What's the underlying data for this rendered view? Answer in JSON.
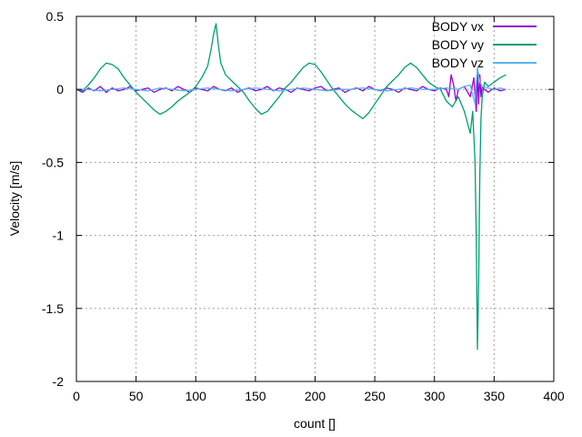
{
  "chart_data": {
    "type": "line",
    "title": "",
    "xlabel": "count []",
    "ylabel": "Velocity [m/s]",
    "xlim": [
      0,
      400
    ],
    "ylim": [
      -2,
      0.5
    ],
    "x_ticks": [
      0,
      50,
      100,
      150,
      200,
      250,
      300,
      350,
      400
    ],
    "y_ticks": [
      0.5,
      0,
      -0.5,
      -1,
      -1.5,
      -2
    ],
    "x_tick_labels": [
      "0",
      "50",
      "100",
      "150",
      "200",
      "250",
      "300",
      "350",
      "400"
    ],
    "y_tick_labels": [
      "0.5",
      "0",
      "-0.5",
      "-1",
      "-1.5",
      "-2"
    ],
    "grid": true,
    "legend_position": "top-right",
    "series": [
      {
        "name": "BODY vx",
        "color": "#9400d3",
        "x": [
          0,
          5,
          10,
          15,
          20,
          25,
          30,
          35,
          40,
          45,
          50,
          55,
          60,
          65,
          70,
          75,
          80,
          85,
          90,
          95,
          100,
          105,
          110,
          115,
          120,
          125,
          130,
          135,
          140,
          145,
          150,
          155,
          160,
          165,
          170,
          175,
          180,
          185,
          190,
          195,
          200,
          205,
          210,
          215,
          220,
          225,
          230,
          235,
          240,
          245,
          250,
          255,
          260,
          265,
          270,
          275,
          280,
          285,
          290,
          295,
          300,
          305,
          310,
          312,
          314,
          316,
          318,
          320,
          325,
          330,
          333,
          335,
          336,
          337,
          338,
          339,
          340,
          342,
          345,
          350,
          355,
          360
        ],
        "y": [
          0.0,
          -0.02,
          0.01,
          -0.01,
          0.02,
          -0.02,
          0.01,
          -0.01,
          0.0,
          0.02,
          -0.01,
          0.0,
          0.01,
          -0.02,
          0.0,
          0.01,
          -0.01,
          0.02,
          0.0,
          -0.02,
          0.01,
          0.0,
          -0.01,
          0.02,
          0.0,
          -0.01,
          0.01,
          -0.02,
          0.0,
          0.01,
          -0.01,
          0.0,
          0.02,
          -0.01,
          0.01,
          0.0,
          -0.02,
          0.01,
          0.0,
          -0.01,
          0.01,
          0.02,
          -0.01,
          0.0,
          0.01,
          -0.02,
          0.0,
          0.01,
          -0.01,
          0.02,
          0.0,
          -0.01,
          0.01,
          0.0,
          -0.02,
          0.01,
          0.0,
          -0.01,
          0.02,
          0.0,
          -0.01,
          0.01,
          0.0,
          -0.05,
          0.1,
          0.03,
          -0.08,
          0.0,
          0.02,
          -0.05,
          0.08,
          -0.15,
          0.12,
          -0.1,
          0.1,
          -0.05,
          0.02,
          0.0,
          -0.02,
          0.01,
          -0.01,
          0.0
        ]
      },
      {
        "name": "BODY vy",
        "color": "#009e73",
        "x": [
          0,
          5,
          10,
          15,
          20,
          25,
          30,
          35,
          40,
          45,
          50,
          55,
          60,
          65,
          70,
          75,
          80,
          85,
          90,
          95,
          100,
          105,
          110,
          113,
          115,
          117,
          119,
          121,
          125,
          130,
          135,
          140,
          145,
          150,
          155,
          160,
          165,
          170,
          175,
          180,
          185,
          190,
          195,
          200,
          205,
          210,
          215,
          220,
          225,
          230,
          235,
          240,
          245,
          250,
          255,
          260,
          265,
          270,
          275,
          280,
          285,
          290,
          295,
          300,
          305,
          310,
          315,
          320,
          325,
          330,
          332,
          334,
          335,
          336,
          337,
          338,
          339,
          340,
          342,
          345,
          350,
          355,
          360
        ],
        "y": [
          0.0,
          -0.01,
          0.03,
          0.08,
          0.14,
          0.18,
          0.17,
          0.14,
          0.08,
          0.03,
          -0.02,
          -0.06,
          -0.1,
          -0.14,
          -0.17,
          -0.15,
          -0.12,
          -0.08,
          -0.05,
          -0.02,
          0.02,
          0.08,
          0.16,
          0.28,
          0.38,
          0.45,
          0.3,
          0.18,
          0.1,
          0.06,
          0.02,
          -0.02,
          -0.08,
          -0.13,
          -0.17,
          -0.15,
          -0.1,
          -0.05,
          0.01,
          0.05,
          0.1,
          0.15,
          0.18,
          0.17,
          0.12,
          0.06,
          0.0,
          -0.05,
          -0.1,
          -0.14,
          -0.17,
          -0.2,
          -0.16,
          -0.1,
          -0.04,
          0.02,
          0.06,
          0.1,
          0.15,
          0.18,
          0.15,
          0.1,
          0.05,
          0.02,
          0.0,
          -0.08,
          -0.12,
          -0.05,
          -0.15,
          -0.3,
          -0.15,
          -0.5,
          -1.0,
          -1.78,
          -1.35,
          -0.6,
          -0.2,
          -0.05,
          0.05,
          0.02,
          0.05,
          0.08,
          0.1
        ]
      },
      {
        "name": "BODY vz",
        "color": "#56b4e9",
        "x": [
          0,
          10,
          20,
          30,
          40,
          50,
          60,
          70,
          80,
          90,
          100,
          110,
          120,
          130,
          140,
          150,
          160,
          170,
          180,
          190,
          200,
          210,
          220,
          230,
          240,
          250,
          260,
          270,
          280,
          290,
          300,
          310,
          320,
          325,
          330,
          334,
          336,
          338,
          340,
          345,
          350,
          355,
          360
        ],
        "y": [
          0.0,
          0.0,
          -0.01,
          0.0,
          0.01,
          0.0,
          -0.01,
          0.01,
          0.0,
          -0.01,
          0.0,
          0.01,
          0.0,
          -0.01,
          0.0,
          0.01,
          0.0,
          -0.01,
          0.0,
          0.01,
          0.0,
          -0.01,
          0.0,
          0.0,
          0.01,
          0.0,
          -0.01,
          0.0,
          0.01,
          0.0,
          0.0,
          0.01,
          0.0,
          0.02,
          0.03,
          -0.1,
          0.15,
          0.05,
          0.02,
          0.01,
          0.0,
          0.01,
          0.0
        ]
      }
    ]
  }
}
